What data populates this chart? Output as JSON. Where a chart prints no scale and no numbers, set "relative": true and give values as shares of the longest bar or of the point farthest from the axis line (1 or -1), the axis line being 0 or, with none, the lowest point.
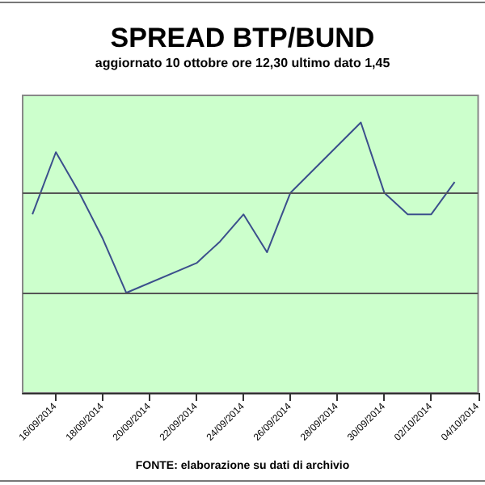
{
  "chart_data": {
    "type": "line",
    "title": "SPREAD BTP/BUND",
    "subtitle": "aggiornato 10 ottobre ore 12,30 ultimo dato 1,45",
    "annotations": [
      "FONTE: elaborazione su dati di archivio"
    ],
    "relative": true,
    "x": [
      "2014-09-15",
      "2014-09-16",
      "2014-09-17",
      "2014-09-18",
      "2014-09-19",
      "2014-09-22",
      "2014-09-23",
      "2014-09-24",
      "2014-09-25",
      "2014-09-26",
      "2014-09-29",
      "2014-09-30",
      "2014-10-01",
      "2014-10-02",
      "2014-10-03"
    ],
    "series": [
      {
        "color": "#3b4f8c",
        "values": [
          0.66,
          0.89,
          0.74,
          0.57,
          0.37,
          0.48,
          0.56,
          0.66,
          0.52,
          0.74,
          1,
          0.74,
          0.66,
          0.66,
          0.78
        ]
      }
    ],
    "xlim": [
      "2014-09-14T14:00",
      "2014-10-04T00:00"
    ],
    "xticks": [
      {
        "value": "2014-09-16",
        "label": "16/09/2014"
      },
      {
        "value": "2014-09-18",
        "label": "18/09/2014"
      },
      {
        "value": "2014-09-20",
        "label": "20/09/2014"
      },
      {
        "value": "2014-09-22",
        "label": "22/09/2014"
      },
      {
        "value": "2014-09-24",
        "label": "24/09/2014"
      },
      {
        "value": "2014-09-26",
        "label": "26/09/2014"
      },
      {
        "value": "2014-09-28",
        "label": "28/09/2014"
      },
      {
        "value": "2014-09-30",
        "label": "30/09/2014"
      },
      {
        "value": "2014-10-02",
        "label": "02/10/2014"
      },
      {
        "value": "2014-10-04",
        "label": "04/10/2014"
      }
    ],
    "ref_lines": [
      {
        "axis": "y",
        "value": 0.37,
        "color": "#555555"
      },
      {
        "axis": "y",
        "value": 0.74,
        "color": "#555555"
      }
    ]
  }
}
